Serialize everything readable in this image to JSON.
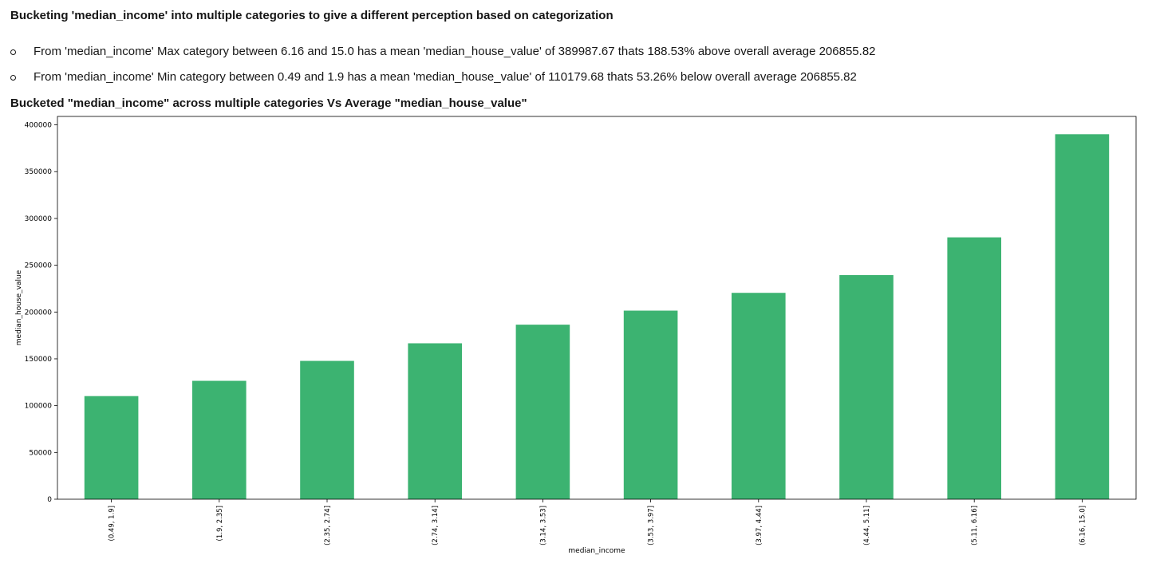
{
  "heading": "Bucketing 'median_income' into multiple categories to give a different perception based on categorization",
  "findings": [
    "From 'median_income' Max category between 6.16 and 15.0 has a mean 'median_house_value' of 389987.67 thats 188.53% above overall average 206855.82",
    "From 'median_income' Min category between 0.49 and 1.9 has a mean 'median_house_value' of 110179.68 thats 53.26% below overall average 206855.82"
  ],
  "chart_title": "Bucketed \"median_income\" across multiple categories Vs Average \"median_house_value\"",
  "colors": {
    "bar": "#3cb371",
    "axes": "#000000",
    "text": "#161616"
  },
  "chart_data": {
    "type": "bar",
    "categories": [
      "(0.49, 1.9]",
      "(1.9, 2.35]",
      "(2.35, 2.74]",
      "(2.74, 3.14]",
      "(3.14, 3.53]",
      "(3.53, 3.97]",
      "(3.97, 4.44]",
      "(4.44, 5.11]",
      "(5.11, 6.16]",
      "(6.16, 15.0]"
    ],
    "values": [
      110179.68,
      126500,
      147800,
      166600,
      186500,
      201500,
      220500,
      239500,
      279800,
      389987.67
    ],
    "xlabel": "median_income",
    "ylabel": "median_house_value",
    "ylim": [
      0,
      409000
    ],
    "yticks": [
      0,
      50000,
      100000,
      150000,
      200000,
      250000,
      300000,
      350000,
      400000
    ],
    "grid": false,
    "legend": "none"
  }
}
